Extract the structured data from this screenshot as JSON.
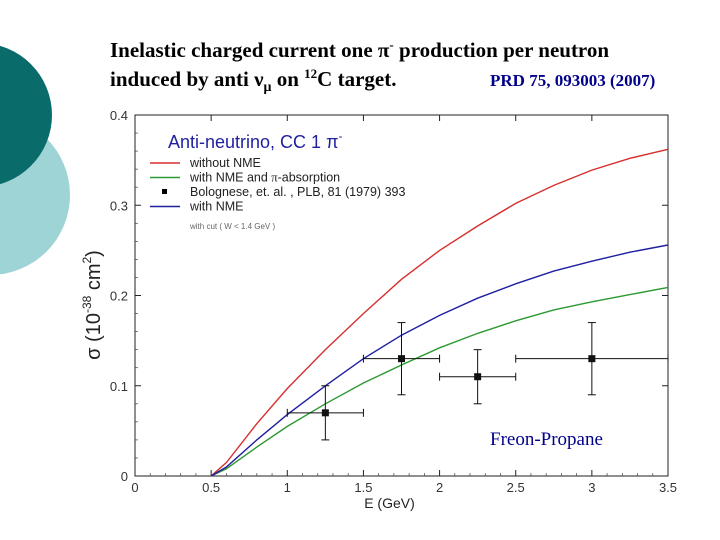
{
  "slide": {
    "title_line1_a": "Inelastic charged current one ",
    "title_pi": "π",
    "title_pi_sup": "-",
    "title_line1_b": " production per neutron",
    "title_line2_a": "induced by anti ",
    "title_nu": "ν",
    "title_mu": "μ",
    "title_line2_b": " on ",
    "title_mass": "12",
    "title_line2_c": "C target.",
    "reference": "PRD 75, 093003 (2007)"
  },
  "colors": {
    "deco_dark": "#0a6b6b",
    "deco_light": "#9fd4d6",
    "red": "#d62f2f",
    "green": "#2c9a32",
    "blue": "#1f1fa0",
    "annotation": "#00008b"
  },
  "chart_data": {
    "type": "line",
    "title": "Anti-neutrino,  CC 1 π",
    "title_sup": "-",
    "xlabel": "E (GeV)",
    "ylabel": "σ (10",
    "ylabel_exp": "-38",
    "ylabel_unit": " cm",
    "ylabel_unit_exp": "2",
    "ylabel_close": ")",
    "xlim": [
      0,
      3.5
    ],
    "ylim": [
      0,
      0.4
    ],
    "xticks": [
      0,
      0.5,
      1,
      1.5,
      2,
      2.5,
      3,
      3.5
    ],
    "xtick_labels": [
      "0",
      "0.5",
      "1",
      "1.5",
      "2",
      "2.5",
      "3",
      "3.5"
    ],
    "yticks": [
      0,
      0.1,
      0.2,
      0.3,
      0.4
    ],
    "ytick_labels": [
      "0",
      "0.1",
      "0.2",
      "0.3",
      "0.4"
    ],
    "series": [
      {
        "name": "without NME",
        "color": "#d62f2f",
        "x": [
          0.5,
          0.6,
          0.8,
          1.0,
          1.25,
          1.5,
          1.75,
          2.0,
          2.25,
          2.5,
          2.75,
          3.0,
          3.25,
          3.5
        ],
        "y": [
          0.0,
          0.015,
          0.058,
          0.097,
          0.14,
          0.18,
          0.218,
          0.25,
          0.277,
          0.302,
          0.322,
          0.339,
          0.352,
          0.362
        ]
      },
      {
        "name": "with NME and π-absorption",
        "color": "#2c9a32",
        "x": [
          0.5,
          0.6,
          0.8,
          1.0,
          1.25,
          1.5,
          1.75,
          2.0,
          2.25,
          2.5,
          2.75,
          3.0,
          3.25,
          3.5
        ],
        "y": [
          0.0,
          0.008,
          0.032,
          0.055,
          0.08,
          0.103,
          0.123,
          0.142,
          0.158,
          0.172,
          0.184,
          0.193,
          0.201,
          0.209
        ]
      },
      {
        "name": "with NME",
        "color": "#1f1fa0",
        "x": [
          0.5,
          0.6,
          0.8,
          1.0,
          1.25,
          1.5,
          1.75,
          2.0,
          2.25,
          2.5,
          2.75,
          3.0,
          3.25,
          3.5
        ],
        "y": [
          0.0,
          0.01,
          0.04,
          0.068,
          0.1,
          0.13,
          0.156,
          0.178,
          0.197,
          0.213,
          0.227,
          0.238,
          0.248,
          0.256
        ]
      }
    ],
    "points": {
      "name": "Bolognese, et. al. , PLB, 81 (1979) 393",
      "x": [
        1.25,
        1.75,
        2.25,
        3.0
      ],
      "y": [
        0.07,
        0.13,
        0.11,
        0.13
      ],
      "xerr": [
        0.25,
        0.25,
        0.25,
        0.5
      ],
      "yerr": [
        0.03,
        0.04,
        0.03,
        0.04
      ]
    },
    "legend": [
      {
        "label": "without NME",
        "color": "#d62f2f",
        "kind": "line"
      },
      {
        "label": "with NME and ",
        "label_pi": "π",
        "label_tail": "-absorption",
        "color": "#2c9a32",
        "kind": "line"
      },
      {
        "label": "Bolognese, et. al. , PLB, 81 (1979) 393",
        "color": "#000000",
        "kind": "marker"
      },
      {
        "label": "with NME",
        "color": "#1f1fa0",
        "kind": "line"
      }
    ],
    "legend_note": "with cut ( W < 1.4 GeV )",
    "annotation": "Freon-Propane"
  }
}
